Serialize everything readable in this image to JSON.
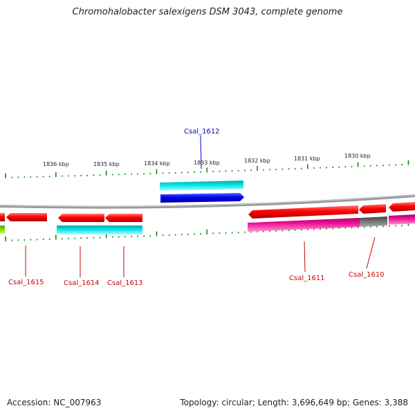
{
  "title": "Chromohalobacter salexigens DSM 3043, complete genome",
  "footer": {
    "accession": "Accession: NC_007963",
    "summary": "Topology: circular; Length: 3,696,649 bp; Genes: 3,388"
  },
  "ruler": [
    "1836 kbp",
    "1835 kbp",
    "1834 kbp",
    "1833 kbp",
    "1832 kbp",
    "1831 kbp",
    "1830 kbp"
  ],
  "genes": [
    "Csal_1612",
    "Csal_1615",
    "Csal_1614",
    "Csal_1613",
    "Csal_1611",
    "Csal_1610"
  ],
  "colors": {
    "label_reverse": "#cc0000",
    "label_forward": "#0000cc",
    "cds_reverse": "#ff0000",
    "cds_forward": "#0000ee",
    "rna_band": "#00dddd",
    "magenta_band": "#ee1199",
    "gray_band": "#666666",
    "green_band": "#88dd00",
    "backbone": "#888888",
    "ticks": "#118811"
  }
}
